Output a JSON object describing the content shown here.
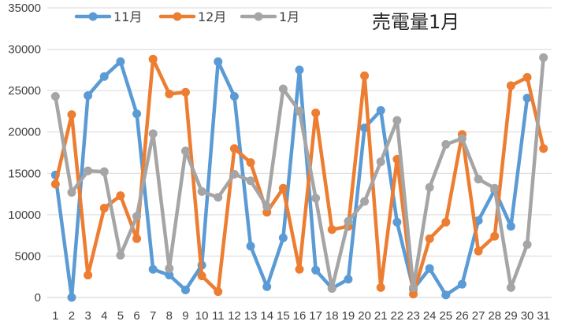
{
  "chart_data": {
    "type": "line",
    "title": "売電量1月",
    "xlabel": "",
    "ylabel": "",
    "categories": [
      "1",
      "2",
      "3",
      "4",
      "5",
      "6",
      "7",
      "8",
      "9",
      "10",
      "11",
      "12",
      "13",
      "14",
      "15",
      "16",
      "17",
      "18",
      "19",
      "20",
      "21",
      "22",
      "23",
      "24",
      "25",
      "26",
      "27",
      "28",
      "29",
      "30",
      "31"
    ],
    "ylim": [
      0,
      35000
    ],
    "yticks": [
      0,
      5000,
      10000,
      15000,
      20000,
      25000,
      30000,
      35000
    ],
    "grid": true,
    "legend_position": "top-left",
    "series": [
      {
        "name": "11月",
        "color": "#5B9BD5",
        "values": [
          14800,
          0,
          24400,
          26700,
          28500,
          22200,
          3400,
          2700,
          900,
          3900,
          28500,
          24300,
          6200,
          1300,
          7200,
          27500,
          3300,
          1100,
          2200,
          20500,
          22600,
          9100,
          1000,
          3500,
          300,
          1600,
          9300,
          13000,
          8600,
          24100,
          null
        ]
      },
      {
        "name": "12月",
        "color": "#ED7D31",
        "values": [
          13700,
          22100,
          2700,
          10800,
          12300,
          7100,
          28800,
          24600,
          24800,
          2600,
          700,
          18000,
          16300,
          10300,
          13200,
          3400,
          22300,
          8200,
          8600,
          26800,
          1200,
          16700,
          400,
          7100,
          9100,
          19700,
          5600,
          7400,
          25600,
          26600,
          18000
        ]
      },
      {
        "name": "1月",
        "color": "#A5A5A5",
        "values": [
          24300,
          12700,
          15300,
          15200,
          5100,
          9800,
          19800,
          3500,
          17700,
          12800,
          12100,
          14900,
          14100,
          11000,
          25200,
          22500,
          12000,
          1100,
          9200,
          11600,
          16400,
          21400,
          1200,
          13300,
          18500,
          19200,
          14300,
          13200,
          1200,
          6400,
          29000
        ]
      }
    ]
  }
}
